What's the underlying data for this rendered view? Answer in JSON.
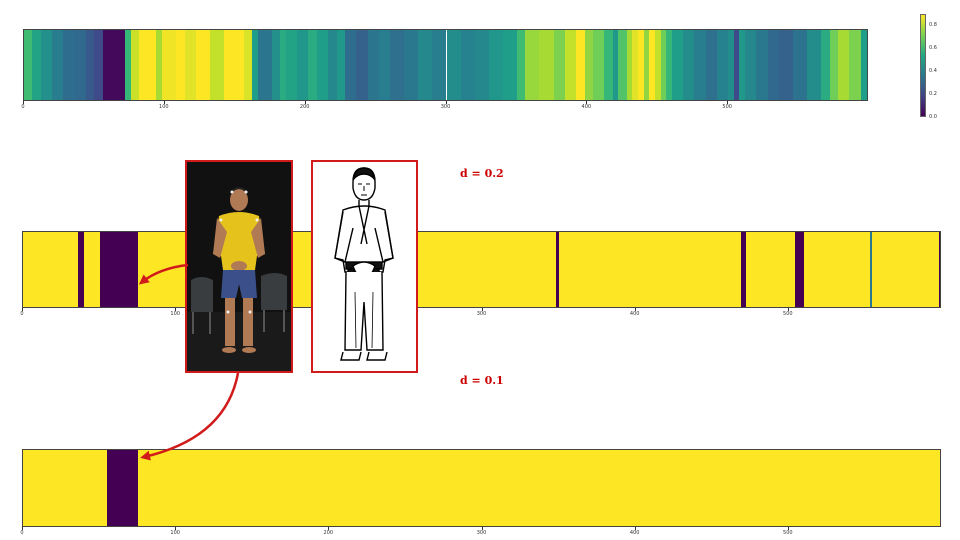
{
  "chart_data": [
    {
      "type": "heatmap",
      "name": "continuous-signal",
      "xlim": [
        0,
        600
      ],
      "xticks": [
        0,
        100,
        200,
        300,
        400,
        500
      ],
      "colormap": "viridis",
      "value_range": [
        0,
        0.9
      ],
      "segments": [
        [
          0,
          6,
          0.62
        ],
        [
          6,
          12,
          0.52
        ],
        [
          12,
          20,
          0.45
        ],
        [
          20,
          28,
          0.38
        ],
        [
          28,
          36,
          0.32
        ],
        [
          36,
          44,
          0.3
        ],
        [
          44,
          50,
          0.25
        ],
        [
          50,
          56,
          0.2
        ],
        [
          56,
          72,
          0.02
        ],
        [
          72,
          76,
          0.6
        ],
        [
          76,
          82,
          0.83
        ],
        [
          82,
          86,
          0.92
        ],
        [
          86,
          94,
          0.9
        ],
        [
          94,
          98,
          0.78
        ],
        [
          98,
          108,
          0.88
        ],
        [
          108,
          114,
          0.92
        ],
        [
          114,
          122,
          0.86
        ],
        [
          122,
          132,
          0.9
        ],
        [
          132,
          142,
          0.82
        ],
        [
          142,
          148,
          0.94
        ],
        [
          148,
          156,
          0.96
        ],
        [
          156,
          162,
          0.85
        ],
        [
          162,
          166,
          0.5
        ],
        [
          166,
          176,
          0.35
        ],
        [
          176,
          182,
          0.45
        ],
        [
          182,
          186,
          0.55
        ],
        [
          186,
          194,
          0.52
        ],
        [
          194,
          202,
          0.47
        ],
        [
          202,
          208,
          0.55
        ],
        [
          208,
          216,
          0.5
        ],
        [
          216,
          222,
          0.42
        ],
        [
          222,
          228,
          0.48
        ],
        [
          228,
          236,
          0.32
        ],
        [
          236,
          244,
          0.28
        ],
        [
          244,
          252,
          0.35
        ],
        [
          252,
          260,
          0.38
        ],
        [
          260,
          270,
          0.33
        ],
        [
          270,
          280,
          0.36
        ],
        [
          280,
          290,
          0.42
        ],
        [
          290,
          300,
          0.38
        ],
        [
          300,
          310,
          0.44
        ],
        [
          310,
          320,
          0.4
        ],
        [
          320,
          330,
          0.42
        ],
        [
          330,
          340,
          0.47
        ],
        [
          340,
          350,
          0.5
        ],
        [
          350,
          356,
          0.62
        ],
        [
          356,
          366,
          0.76
        ],
        [
          366,
          376,
          0.78
        ],
        [
          376,
          384,
          0.72
        ],
        [
          384,
          392,
          0.82
        ],
        [
          392,
          398,
          0.9
        ],
        [
          398,
          404,
          0.75
        ],
        [
          404,
          412,
          0.7
        ],
        [
          412,
          418,
          0.6
        ],
        [
          418,
          422,
          0.48
        ],
        [
          422,
          428,
          0.65
        ],
        [
          428,
          432,
          0.78
        ],
        [
          432,
          436,
          0.86
        ],
        [
          436,
          440,
          0.94
        ],
        [
          440,
          444,
          0.75
        ],
        [
          444,
          448,
          0.9
        ],
        [
          448,
          452,
          0.82
        ],
        [
          452,
          456,
          0.7
        ],
        [
          456,
          460,
          0.6
        ],
        [
          460,
          468,
          0.5
        ],
        [
          468,
          476,
          0.44
        ],
        [
          476,
          484,
          0.38
        ],
        [
          484,
          492,
          0.33
        ],
        [
          492,
          500,
          0.4
        ],
        [
          500,
          504,
          0.44
        ],
        [
          504,
          508,
          0.2
        ],
        [
          508,
          512,
          0.48
        ],
        [
          512,
          520,
          0.42
        ],
        [
          520,
          528,
          0.36
        ],
        [
          528,
          536,
          0.3
        ],
        [
          536,
          546,
          0.28
        ],
        [
          546,
          556,
          0.34
        ],
        [
          556,
          566,
          0.44
        ],
        [
          566,
          572,
          0.55
        ],
        [
          572,
          578,
          0.7
        ],
        [
          578,
          586,
          0.78
        ],
        [
          586,
          594,
          0.72
        ],
        [
          594,
          600,
          0.5
        ]
      ],
      "colorbar": {
        "ticks": [
          "0.0",
          "0.2",
          "0.4",
          "0.6",
          "0.8"
        ],
        "tick_values": [
          0,
          0.2,
          0.4,
          0.6,
          0.8
        ]
      }
    },
    {
      "type": "heatmap",
      "name": "thresholded-d-0.2",
      "annotation": "d = 0.2",
      "xlim": [
        0,
        600
      ],
      "xticks": [
        0,
        100,
        200,
        300,
        400,
        500
      ],
      "colormap": "viridis",
      "background_value": 1,
      "segments": [
        [
          36,
          40,
          0
        ],
        [
          50,
          75,
          0
        ],
        [
          348,
          350,
          0
        ],
        [
          469,
          472,
          0
        ],
        [
          504,
          510,
          0
        ],
        [
          553,
          554,
          0.4
        ],
        [
          598,
          600,
          0
        ]
      ]
    },
    {
      "type": "heatmap",
      "name": "thresholded-d-0.1",
      "annotation": "d = 0.1",
      "xlim": [
        0,
        600
      ],
      "xticks": [
        0,
        100,
        200,
        300,
        400,
        500
      ],
      "colormap": "viridis",
      "background_value": 1,
      "segments": [
        [
          55,
          75,
          0
        ]
      ]
    }
  ],
  "icons": {
    "photo": "person-photo-icon",
    "drawing": "karate-stance-drawing-icon",
    "arrow_color": "#d11a1a"
  }
}
